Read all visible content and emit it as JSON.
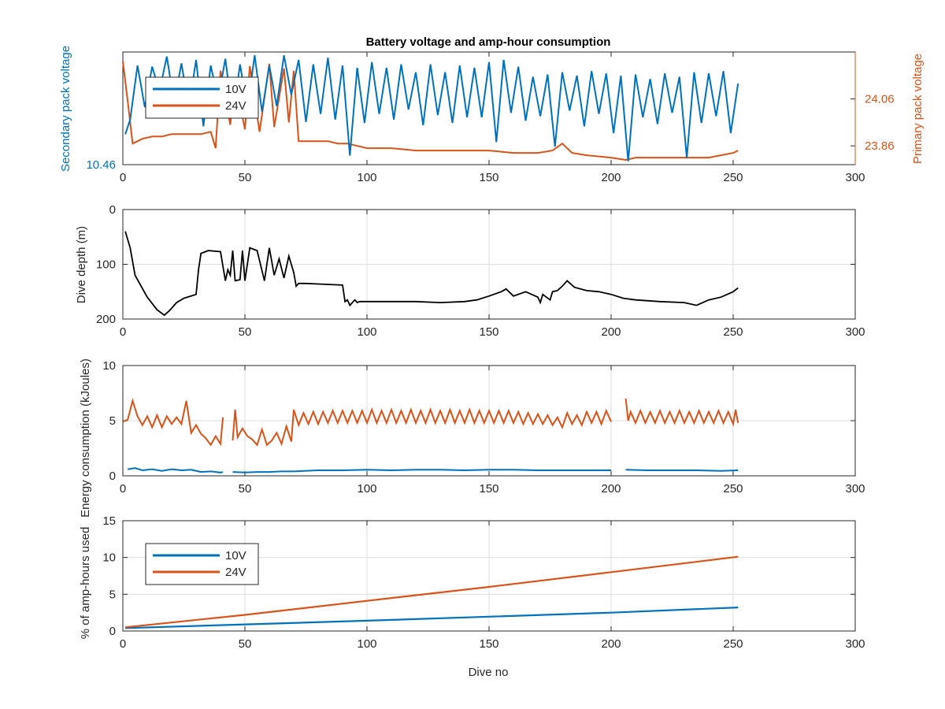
{
  "colors": {
    "blue": "#0072BD",
    "orange": "#D95319",
    "black": "#000000",
    "axis": "#262626",
    "grid": "#dddddd"
  },
  "chart_data": [
    {
      "type": "line",
      "title": "Battery voltage and amp-hour consumption",
      "xlabel": "",
      "ylabel_left": "Secondary pack voltage",
      "ylabel_right": "Primary pack voltage",
      "xlim": [
        0,
        300
      ],
      "xticks": [
        0,
        50,
        100,
        150,
        200,
        250,
        300
      ],
      "yticks_left": [
        {
          "value": 10.46,
          "label": "10.46"
        }
      ],
      "yticks_right": [
        {
          "value": 23.86,
          "label": "23.86"
        },
        {
          "value": 24.06,
          "label": "24.06"
        }
      ],
      "ylim_left": [
        10.46,
        10.56
      ],
      "ylim_right": [
        23.78,
        24.26
      ],
      "grid": false,
      "legend": {
        "position": "top-left",
        "entries": [
          "10V",
          "24V"
        ]
      },
      "series": [
        {
          "name": "10V",
          "axis": "left",
          "color": "#0072BD",
          "x": [
            1,
            3,
            6,
            9,
            12,
            15,
            18,
            21,
            24,
            27,
            30,
            33,
            36,
            39,
            42,
            45,
            48,
            51,
            54,
            57,
            60,
            63,
            66,
            69,
            72,
            75,
            78,
            81,
            84,
            87,
            90,
            93,
            96,
            99,
            102,
            105,
            108,
            111,
            114,
            117,
            120,
            123,
            126,
            129,
            132,
            135,
            138,
            141,
            144,
            147,
            150,
            153,
            156,
            159,
            162,
            165,
            168,
            171,
            174,
            177,
            180,
            183,
            186,
            189,
            192,
            195,
            198,
            201,
            204,
            207,
            210,
            213,
            216,
            219,
            222,
            225,
            228,
            231,
            234,
            237,
            240,
            243,
            246,
            249,
            252
          ],
          "y": [
            10.487,
            10.5,
            10.548,
            10.511,
            10.547,
            10.525,
            10.556,
            10.515,
            10.55,
            10.51,
            10.553,
            10.494,
            10.548,
            10.518,
            10.554,
            10.502,
            10.549,
            10.51,
            10.557,
            10.507,
            10.548,
            10.512,
            10.557,
            10.522,
            10.553,
            10.498,
            10.549,
            10.505,
            10.555,
            10.5,
            10.548,
            10.468,
            10.546,
            10.497,
            10.551,
            10.505,
            10.546,
            10.5,
            10.549,
            10.509,
            10.542,
            10.495,
            10.549,
            10.504,
            10.542,
            10.497,
            10.548,
            10.502,
            10.546,
            10.502,
            10.551,
            10.48,
            10.553,
            10.506,
            10.547,
            10.499,
            10.538,
            10.503,
            10.54,
            10.476,
            10.542,
            10.508,
            10.539,
            10.494,
            10.543,
            10.505,
            10.541,
            10.488,
            10.539,
            10.463,
            10.54,
            10.502,
            10.536,
            10.496,
            10.541,
            10.506,
            10.538,
            10.466,
            10.542,
            10.497,
            10.541,
            10.503,
            10.543,
            10.488,
            10.532
          ]
        },
        {
          "name": "24V",
          "axis": "right",
          "color": "#D95319",
          "x": [
            0,
            2,
            4,
            8,
            12,
            16,
            20,
            24,
            28,
            32,
            36,
            38,
            40,
            44,
            46,
            50,
            52,
            56,
            60,
            62,
            66,
            68,
            70,
            72,
            76,
            80,
            84,
            88,
            92,
            96,
            100,
            110,
            120,
            130,
            140,
            150,
            160,
            170,
            176,
            180,
            184,
            190,
            200,
            206,
            210,
            220,
            230,
            240,
            250,
            252
          ],
          "y": [
            24.22,
            24.05,
            23.87,
            23.89,
            23.9,
            23.9,
            23.91,
            23.91,
            23.91,
            23.91,
            23.92,
            23.85,
            24.18,
            23.95,
            24.15,
            23.93,
            24.2,
            23.92,
            24.21,
            23.94,
            24.19,
            23.96,
            24.18,
            23.88,
            23.88,
            23.88,
            23.88,
            23.87,
            23.87,
            23.86,
            23.85,
            23.85,
            23.84,
            23.84,
            23.84,
            23.84,
            23.83,
            23.83,
            23.84,
            23.87,
            23.83,
            23.82,
            23.81,
            23.8,
            23.81,
            23.81,
            23.81,
            23.81,
            23.83,
            23.84
          ]
        }
      ]
    },
    {
      "type": "line",
      "title": "",
      "xlabel": "",
      "ylabel": "Dive depth (m)",
      "xlim": [
        0,
        300
      ],
      "ylim": [
        0,
        200
      ],
      "y_reversed": true,
      "xticks": [
        0,
        50,
        100,
        150,
        200,
        250,
        300
      ],
      "yticks": [
        0,
        100,
        200
      ],
      "ytick_labels": [
        "0",
        "100",
        "200"
      ],
      "grid": true,
      "series": [
        {
          "name": "",
          "color": "#000000",
          "x": [
            1,
            3,
            5,
            10,
            14,
            17,
            19,
            22,
            25,
            30,
            31,
            32,
            35,
            40,
            42,
            43,
            44,
            45,
            46,
            48,
            49,
            50,
            52,
            55,
            58,
            60,
            62,
            64,
            66,
            68,
            70,
            71,
            72,
            75,
            80,
            90,
            91,
            92,
            93,
            95,
            96,
            97,
            100,
            110,
            120,
            130,
            140,
            145,
            150,
            155,
            157,
            160,
            165,
            170,
            171,
            172,
            175,
            176,
            178,
            180,
            182,
            185,
            190,
            195,
            200,
            205,
            210,
            220,
            230,
            235,
            240,
            245,
            250,
            252
          ],
          "y": [
            40,
            70,
            120,
            160,
            183,
            193,
            185,
            170,
            162,
            155,
            110,
            80,
            75,
            77,
            130,
            110,
            120,
            75,
            130,
            128,
            75,
            130,
            70,
            75,
            130,
            70,
            120,
            90,
            125,
            85,
            115,
            140,
            135,
            135,
            136,
            138,
            168,
            165,
            175,
            165,
            170,
            168,
            168,
            168,
            168,
            170,
            168,
            165,
            158,
            150,
            145,
            158,
            150,
            160,
            170,
            155,
            165,
            150,
            148,
            140,
            130,
            142,
            148,
            150,
            155,
            162,
            165,
            168,
            170,
            175,
            165,
            160,
            150,
            143
          ]
        }
      ]
    },
    {
      "type": "line",
      "title": "",
      "xlabel": "",
      "ylabel": "Energy consumption (kJoules)",
      "xlim": [
        0,
        300
      ],
      "ylim": [
        0,
        10
      ],
      "xticks": [
        0,
        50,
        100,
        150,
        200,
        250,
        300
      ],
      "yticks": [
        0,
        5,
        10
      ],
      "grid": true,
      "series": [
        {
          "name": "24V",
          "color": "#D95319",
          "segments": [
            {
              "x": [
                0,
                2,
                4,
                6,
                8,
                10,
                12,
                14,
                16,
                18,
                20,
                22,
                24,
                26,
                28,
                30,
                32,
                34,
                36,
                38,
                40,
                41
              ],
              "y": [
                4.9,
                5.1,
                6.8,
                5.4,
                4.6,
                5.4,
                4.4,
                5.5,
                4.4,
                5.4,
                4.7,
                5.3,
                4.7,
                6.8,
                3.9,
                4.6,
                3.8,
                3.4,
                2.8,
                3.6,
                2.9,
                5.3
              ]
            },
            {
              "x": [
                45,
                46,
                47,
                49,
                51,
                53,
                55,
                57,
                59,
                61,
                63,
                65,
                67,
                69,
                70,
                72,
                74,
                76,
                78,
                80,
                82,
                84,
                86,
                88,
                90,
                92,
                94,
                96,
                98,
                100,
                102,
                104,
                106,
                108,
                110,
                112,
                114,
                116,
                118,
                120,
                122,
                124,
                126,
                128,
                130,
                132,
                134,
                136,
                138,
                140,
                142,
                144,
                146,
                148,
                150,
                152,
                154,
                156,
                158,
                160,
                162,
                164,
                166,
                168,
                170,
                172,
                174,
                176,
                178,
                180,
                182,
                184,
                186,
                188,
                190,
                192,
                194,
                196,
                198,
                200
              ],
              "y": [
                3.2,
                6.0,
                3.5,
                4.3,
                3.6,
                3.3,
                2.8,
                4.2,
                2.8,
                3.2,
                3.9,
                2.9,
                4.5,
                3.1,
                6.0,
                4.6,
                5.7,
                4.7,
                5.8,
                4.7,
                5.8,
                4.8,
                5.9,
                4.8,
                5.9,
                4.8,
                5.9,
                4.8,
                5.9,
                4.8,
                6.0,
                4.8,
                5.9,
                4.8,
                6.0,
                4.8,
                5.9,
                4.8,
                6.0,
                4.8,
                5.9,
                4.8,
                6.0,
                4.8,
                5.9,
                4.8,
                6.0,
                4.8,
                5.9,
                4.8,
                6.0,
                4.8,
                5.9,
                4.8,
                5.9,
                4.8,
                5.9,
                4.8,
                5.9,
                4.8,
                5.8,
                4.7,
                5.7,
                4.7,
                5.6,
                4.7,
                5.5,
                4.6,
                5.3,
                4.4,
                5.7,
                4.7,
                5.5,
                4.6,
                5.8,
                4.8,
                5.8,
                4.7,
                5.9,
                4.9
              ]
            },
            {
              "x": [
                206,
                207,
                208,
                210,
                212,
                214,
                216,
                218,
                220,
                222,
                224,
                226,
                228,
                230,
                232,
                234,
                236,
                238,
                240,
                242,
                244,
                246,
                248,
                250,
                251,
                252
              ],
              "y": [
                7.0,
                5.0,
                5.8,
                4.8,
                5.9,
                4.8,
                5.8,
                4.8,
                5.9,
                4.8,
                5.8,
                4.8,
                5.9,
                4.8,
                5.8,
                4.8,
                5.9,
                4.8,
                5.8,
                4.8,
                5.9,
                4.8,
                5.8,
                4.7,
                6.0,
                4.8
              ]
            }
          ]
        },
        {
          "name": "10V",
          "color": "#0072BD",
          "segments": [
            {
              "x": [
                2,
                5,
                8,
                12,
                16,
                20,
                24,
                28,
                32,
                36,
                40,
                41
              ],
              "y": [
                0.6,
                0.7,
                0.5,
                0.6,
                0.45,
                0.6,
                0.5,
                0.55,
                0.35,
                0.4,
                0.3,
                0.35
              ]
            },
            {
              "x": [
                45,
                50,
                55,
                60,
                65,
                70,
                80,
                90,
                100,
                110,
                120,
                130,
                140,
                150,
                160,
                170,
                180,
                190,
                200
              ],
              "y": [
                0.35,
                0.3,
                0.35,
                0.35,
                0.4,
                0.4,
                0.5,
                0.5,
                0.55,
                0.5,
                0.55,
                0.55,
                0.5,
                0.55,
                0.55,
                0.5,
                0.5,
                0.5,
                0.5
              ]
            },
            {
              "x": [
                206,
                215,
                225,
                235,
                245,
                252
              ],
              "y": [
                0.55,
                0.5,
                0.5,
                0.5,
                0.45,
                0.5
              ]
            }
          ]
        }
      ]
    },
    {
      "type": "line",
      "title": "",
      "xlabel": "Dive no",
      "ylabel": "% of amp-hours used",
      "xlim": [
        0,
        300
      ],
      "ylim": [
        0,
        15
      ],
      "xticks": [
        0,
        50,
        100,
        150,
        200,
        250,
        300
      ],
      "yticks": [
        0,
        5,
        10,
        15
      ],
      "grid": true,
      "legend": {
        "position": "top-left",
        "entries": [
          "10V",
          "24V"
        ]
      },
      "series": [
        {
          "name": "10V",
          "color": "#0072BD",
          "x": [
            1,
            100,
            200,
            252
          ],
          "y": [
            0.4,
            1.4,
            2.5,
            3.2
          ]
        },
        {
          "name": "24V",
          "color": "#D95319",
          "x": [
            1,
            50,
            100,
            150,
            200,
            252
          ],
          "y": [
            0.5,
            2.2,
            4.1,
            6.0,
            8.0,
            10.1
          ]
        }
      ]
    }
  ]
}
